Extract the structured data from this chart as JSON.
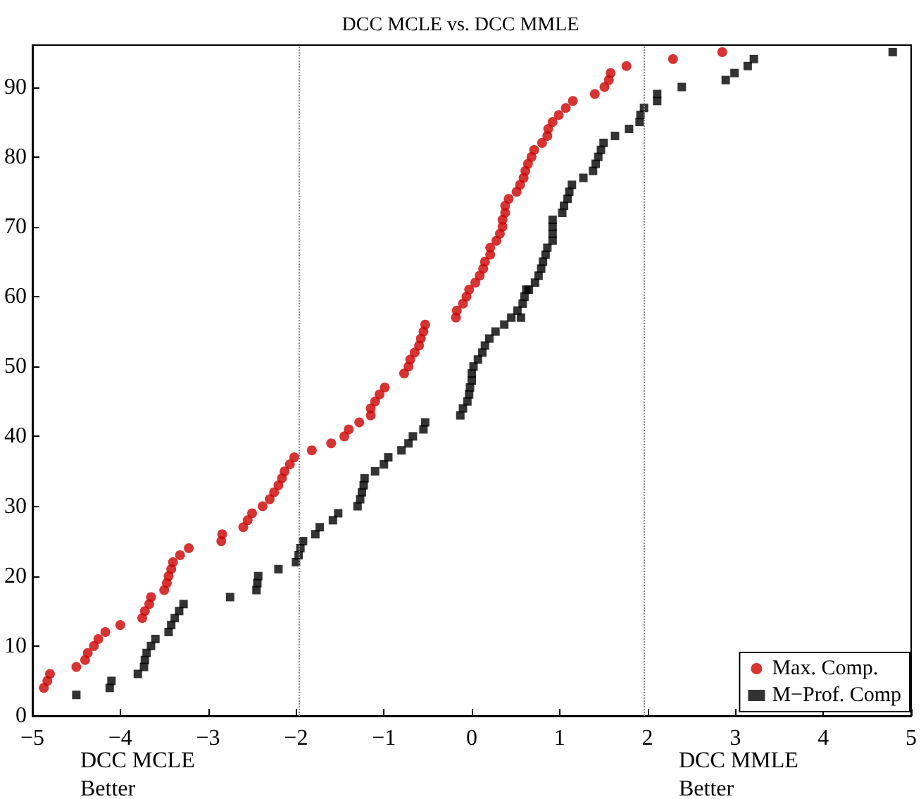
{
  "chart_data": {
    "type": "scatter",
    "title": "DCC MCLE vs. DCC MMLE",
    "xlim": [
      -5,
      5
    ],
    "xticks": [
      -5,
      -4,
      -3,
      -2,
      -1,
      0,
      1,
      2,
      3,
      4,
      5
    ],
    "ylim": [
      0,
      96
    ],
    "yticks": [
      0,
      10,
      20,
      30,
      40,
      50,
      60,
      70,
      80,
      90
    ],
    "grid": false,
    "legend": "bottom right",
    "annotations": [
      "DCC MCLE\nBetter",
      "DCC MMLE\nBetter"
    ],
    "ref_lines": [
      {
        "axis": "x",
        "value": -1.96,
        "label": null,
        "color": "#888888",
        "line_style": "dotted"
      },
      {
        "axis": "x",
        "value": 1.96,
        "label": null,
        "color": "#888888",
        "line_style": "dotted"
      }
    ],
    "series": [
      {
        "name": "Max. Comp.",
        "color": "#cc0000",
        "marker": "circle",
        "x": [
          -4.87,
          -4.83,
          -4.8,
          -4.5,
          -4.4,
          -4.37,
          -4.3,
          -4.25,
          -4.17,
          -4.0,
          -3.75,
          -3.72,
          -3.67,
          -3.65,
          -3.5,
          -3.47,
          -3.45,
          -3.42,
          -3.4,
          -3.32,
          -3.22,
          -2.85,
          -2.84,
          -2.6,
          -2.55,
          -2.5,
          -2.38,
          -2.3,
          -2.25,
          -2.2,
          -2.16,
          -2.13,
          -2.07,
          -2.02,
          -1.82,
          -1.6,
          -1.45,
          -1.4,
          -1.28,
          -1.15,
          -1.15,
          -1.1,
          -1.05,
          -0.99,
          -0.77,
          -0.72,
          -0.7,
          -0.65,
          -0.6,
          -0.58,
          -0.55,
          -0.53,
          -0.18,
          -0.17,
          -0.1,
          -0.06,
          -0.03,
          0.04,
          0.09,
          0.13,
          0.15,
          0.21,
          0.21,
          0.28,
          0.32,
          0.35,
          0.35,
          0.38,
          0.38,
          0.42,
          0.51,
          0.55,
          0.59,
          0.61,
          0.64,
          0.68,
          0.71,
          0.8,
          0.86,
          0.87,
          0.92,
          0.99,
          1.07,
          1.15,
          1.4,
          1.51,
          1.56,
          1.58,
          1.76,
          2.29,
          2.85
        ],
        "values": [
          4,
          5,
          6,
          7,
          8,
          9,
          10,
          11,
          12,
          13,
          14,
          15,
          16,
          17,
          18,
          19,
          20,
          21,
          22,
          23,
          24,
          25,
          26,
          27,
          28,
          29,
          30,
          31,
          32,
          33,
          34,
          35,
          36,
          37,
          38,
          39,
          40,
          41,
          42,
          43,
          44,
          45,
          46,
          47,
          49,
          50,
          51,
          52,
          53,
          54,
          55,
          56,
          57,
          58,
          59,
          60,
          61,
          62,
          63,
          64,
          65,
          66,
          67,
          68,
          69,
          70,
          71,
          72,
          73,
          74,
          75,
          76,
          77,
          78,
          79,
          80,
          81,
          82,
          83,
          84,
          85,
          86,
          87,
          88,
          89,
          90,
          91,
          92,
          93,
          94,
          95
        ]
      },
      {
        "name": "M−Prof. Comp",
        "color": "#000000",
        "marker": "square",
        "x": [
          -4.5,
          -4.12,
          -4.1,
          -3.8,
          -3.73,
          -3.72,
          -3.7,
          -3.65,
          -3.6,
          -3.45,
          -3.42,
          -3.38,
          -3.33,
          -3.28,
          -2.75,
          -2.45,
          -2.44,
          -2.43,
          -2.2,
          -2.0,
          -1.97,
          -1.95,
          -1.92,
          -1.78,
          -1.73,
          -1.58,
          -1.52,
          -1.3,
          -1.27,
          -1.25,
          -1.23,
          -1.22,
          -1.1,
          -1.0,
          -0.95,
          -0.8,
          -0.72,
          -0.67,
          -0.55,
          -0.53,
          -0.13,
          -0.1,
          -0.05,
          -0.03,
          -0.02,
          0.0,
          0.0,
          0.02,
          0.07,
          0.12,
          0.15,
          0.2,
          0.27,
          0.37,
          0.45,
          0.52,
          0.56,
          0.58,
          0.6,
          0.62,
          0.65,
          0.72,
          0.76,
          0.79,
          0.81,
          0.84,
          0.86,
          0.92,
          0.92,
          0.92,
          0.92,
          1.03,
          1.05,
          1.09,
          1.11,
          1.14,
          1.27,
          1.38,
          1.41,
          1.44,
          1.47,
          1.5,
          1.63,
          1.79,
          1.91,
          1.92,
          1.96,
          2.11,
          2.11,
          2.39,
          2.89,
          2.99,
          3.14,
          3.21,
          4.79
        ],
        "values": [
          3,
          4,
          5,
          6,
          7,
          8,
          9,
          10,
          11,
          12,
          13,
          14,
          15,
          16,
          17,
          18,
          19,
          20,
          21,
          22,
          23,
          24,
          25,
          26,
          27,
          28,
          29,
          30,
          31,
          32,
          33,
          34,
          35,
          36,
          37,
          38,
          39,
          40,
          41,
          42,
          43,
          44,
          45,
          46,
          47,
          48,
          49,
          50,
          51,
          52,
          53,
          54,
          55,
          56,
          57,
          58,
          57,
          59,
          60,
          61,
          61,
          62,
          63,
          64,
          65,
          66,
          67,
          68,
          69,
          70,
          71,
          72,
          73,
          74,
          75,
          76,
          77,
          78,
          79,
          80,
          81,
          82,
          83,
          84,
          85,
          86,
          87,
          88,
          89,
          90,
          91,
          92,
          93,
          94,
          95
        ]
      }
    ]
  }
}
